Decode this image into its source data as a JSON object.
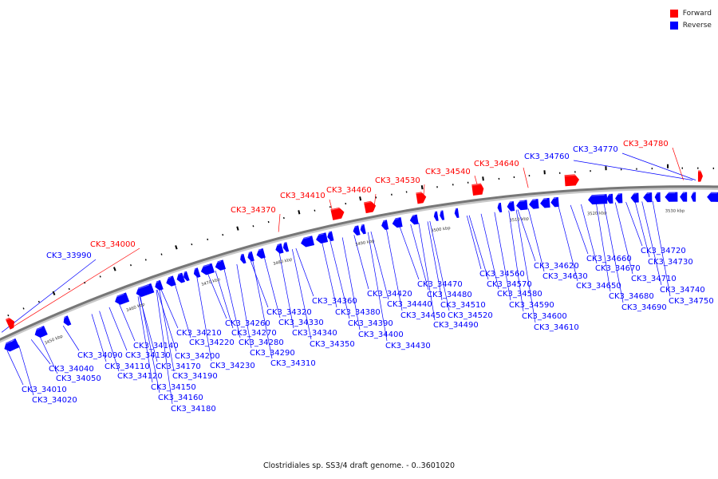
{
  "colors": {
    "forward": "#ff0000",
    "reverse": "#0000ff",
    "backbone": "#777777",
    "tick": "#000000"
  },
  "legend": [
    {
      "label": "Forward",
      "strand": "forward"
    },
    {
      "label": "Reverse",
      "strand": "reverse"
    }
  ],
  "caption": "Clostridiales sp. SS3/4 draft genome. - 0..3601020",
  "scale_labels": [
    "3450 kbp",
    "3460 kbp",
    "3470 kbp",
    "3480 kbp",
    "3490 kbp",
    "3500 kbp",
    "3510 kbp",
    "3520 kbp",
    "3530 kbp"
  ],
  "genes": [
    {
      "id": "CK3_33990",
      "strand": "reverse"
    },
    {
      "id": "CK3_34000",
      "strand": "forward"
    },
    {
      "id": "CK3_34010",
      "strand": "reverse"
    },
    {
      "id": "CK3_34020",
      "strand": "reverse"
    },
    {
      "id": "CK3_34040",
      "strand": "reverse"
    },
    {
      "id": "CK3_34050",
      "strand": "reverse"
    },
    {
      "id": "CK3_34090",
      "strand": "reverse"
    },
    {
      "id": "CK3_34110",
      "strand": "reverse"
    },
    {
      "id": "CK3_34120",
      "strand": "reverse"
    },
    {
      "id": "CK3_34130",
      "strand": "reverse"
    },
    {
      "id": "CK3_34140",
      "strand": "reverse"
    },
    {
      "id": "CK3_34150",
      "strand": "reverse"
    },
    {
      "id": "CK3_34160",
      "strand": "reverse"
    },
    {
      "id": "CK3_34170",
      "strand": "reverse"
    },
    {
      "id": "CK3_34180",
      "strand": "reverse"
    },
    {
      "id": "CK3_34190",
      "strand": "reverse"
    },
    {
      "id": "CK3_34200",
      "strand": "reverse"
    },
    {
      "id": "CK3_34210",
      "strand": "reverse"
    },
    {
      "id": "CK3_34220",
      "strand": "reverse"
    },
    {
      "id": "CK3_34230",
      "strand": "reverse"
    },
    {
      "id": "CK3_34260",
      "strand": "reverse"
    },
    {
      "id": "CK3_34270",
      "strand": "reverse"
    },
    {
      "id": "CK3_34280",
      "strand": "reverse"
    },
    {
      "id": "CK3_34290",
      "strand": "reverse"
    },
    {
      "id": "CK3_34310",
      "strand": "reverse"
    },
    {
      "id": "CK3_34320",
      "strand": "reverse"
    },
    {
      "id": "CK3_34330",
      "strand": "reverse"
    },
    {
      "id": "CK3_34340",
      "strand": "reverse"
    },
    {
      "id": "CK3_34350",
      "strand": "reverse"
    },
    {
      "id": "CK3_34360",
      "strand": "reverse"
    },
    {
      "id": "CK3_34370",
      "strand": "forward"
    },
    {
      "id": "CK3_34380",
      "strand": "reverse"
    },
    {
      "id": "CK3_34390",
      "strand": "reverse"
    },
    {
      "id": "CK3_34400",
      "strand": "reverse"
    },
    {
      "id": "CK3_34410",
      "strand": "forward"
    },
    {
      "id": "CK3_34420",
      "strand": "reverse"
    },
    {
      "id": "CK3_34430",
      "strand": "reverse"
    },
    {
      "id": "CK3_34440",
      "strand": "reverse"
    },
    {
      "id": "CK3_34450",
      "strand": "reverse"
    },
    {
      "id": "CK3_34460",
      "strand": "forward"
    },
    {
      "id": "CK3_34470",
      "strand": "reverse"
    },
    {
      "id": "CK3_34480",
      "strand": "reverse"
    },
    {
      "id": "CK3_34490",
      "strand": "reverse"
    },
    {
      "id": "CK3_34510",
      "strand": "reverse"
    },
    {
      "id": "CK3_34520",
      "strand": "reverse"
    },
    {
      "id": "CK3_34530",
      "strand": "forward"
    },
    {
      "id": "CK3_34540",
      "strand": "forward"
    },
    {
      "id": "CK3_34560",
      "strand": "reverse"
    },
    {
      "id": "CK3_34570",
      "strand": "reverse"
    },
    {
      "id": "CK3_34580",
      "strand": "reverse"
    },
    {
      "id": "CK3_34590",
      "strand": "reverse"
    },
    {
      "id": "CK3_34600",
      "strand": "reverse"
    },
    {
      "id": "CK3_34610",
      "strand": "reverse"
    },
    {
      "id": "CK3_34620",
      "strand": "reverse"
    },
    {
      "id": "CK3_34630",
      "strand": "reverse"
    },
    {
      "id": "CK3_34640",
      "strand": "forward"
    },
    {
      "id": "CK3_34650",
      "strand": "reverse"
    },
    {
      "id": "CK3_34660",
      "strand": "reverse"
    },
    {
      "id": "CK3_34670",
      "strand": "reverse"
    },
    {
      "id": "CK3_34680",
      "strand": "reverse"
    },
    {
      "id": "CK3_34690",
      "strand": "reverse"
    },
    {
      "id": "CK3_34710",
      "strand": "reverse"
    },
    {
      "id": "CK3_34720",
      "strand": "reverse"
    },
    {
      "id": "CK3_34730",
      "strand": "reverse"
    },
    {
      "id": "CK3_34740",
      "strand": "reverse"
    },
    {
      "id": "CK3_34750",
      "strand": "reverse"
    },
    {
      "id": "CK3_34760",
      "strand": "reverse"
    },
    {
      "id": "CK3_34770",
      "strand": "reverse"
    },
    {
      "id": "CK3_34780",
      "strand": "forward"
    }
  ]
}
